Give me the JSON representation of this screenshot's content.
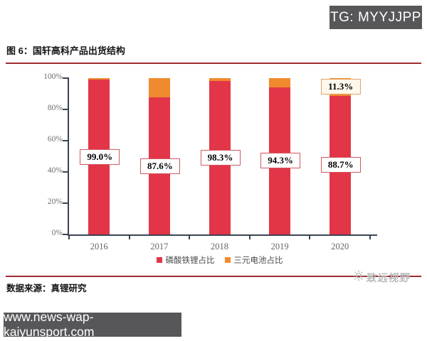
{
  "header": {
    "telegram_badge": "TG: MYYJJPP"
  },
  "figure": {
    "title": "图 6：国轩高科产品出货结构",
    "source_label": "数据来源：真锂研究",
    "watermark": "致远视野"
  },
  "footer": {
    "url": "www.news-wap-kaiyunsport.com"
  },
  "colors": {
    "divider_red": "#9e2b33",
    "badge_gray": "#57575a",
    "axis": "#3b4252",
    "lfp_red": "#e23648",
    "ternary_orange": "#ef8a2e",
    "watermark_gray": "#b9b9b9"
  },
  "chart_data": {
    "type": "bar",
    "stacked": true,
    "title": "国轩高科产品出货结构",
    "categories": [
      "2016",
      "2017",
      "2018",
      "2019",
      "2020"
    ],
    "series": [
      {
        "name": "磷酸铁锂占比",
        "color": "#e23648",
        "values": [
          99.0,
          87.6,
          98.3,
          94.3,
          88.7
        ],
        "labels": [
          "99.0%",
          "87.6%",
          "98.3%",
          "94.3%",
          "88.7%"
        ],
        "label_border": "#d05a62",
        "label_bg": "#ffffff"
      },
      {
        "name": "三元电池占比",
        "color": "#ef8a2e",
        "values": [
          1.0,
          12.4,
          1.7,
          5.7,
          11.3
        ],
        "labels": [
          null,
          null,
          null,
          null,
          "11.3%"
        ],
        "label_border": "#e2a368",
        "label_bg": "#fdf7ec"
      }
    ],
    "xlabel": "",
    "ylabel": "",
    "y_ticks": [
      "0%",
      "20%",
      "40%",
      "60%",
      "80%",
      "100%"
    ],
    "ylim": [
      0,
      100
    ],
    "grid": false,
    "legend_position": "bottom"
  }
}
